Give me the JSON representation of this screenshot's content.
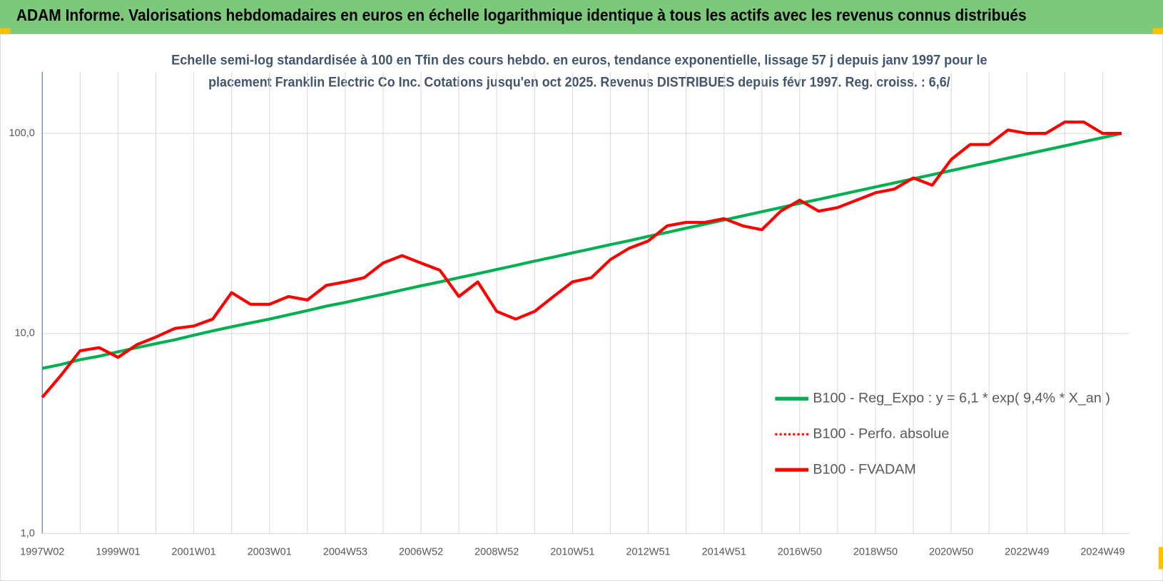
{
  "banner": "ADAM Informe. Valorisations hebdomadaires en euros en échelle logarithmique identique à tous les actifs avec les revenus connus distribués",
  "chart_data": {
    "type": "line",
    "subtitle": [
      "Echelle semi-log standardisée à 100 en Tfin des cours hebdo. en euros, tendance exponentielle, lissage 57 j depuis janv 1997 pour le",
      "placement Franklin Electric Co Inc.  Cotations jusqu'en oct 2025. Revenus DISTRIBUES depuis févr 1997. Reg. croiss. : 6,6/"
    ],
    "categories": [
      "1997W02",
      null,
      null,
      null,
      "1999W01",
      null,
      null,
      null,
      "2001W01",
      null,
      null,
      null,
      "2003W01",
      null,
      null,
      null,
      "2004W53",
      null,
      null,
      null,
      "2006W52",
      null,
      null,
      null,
      "2008W52",
      null,
      null,
      null,
      "2010W51",
      null,
      null,
      null,
      "2012W51",
      null,
      null,
      null,
      "2014W51",
      null,
      null,
      null,
      "2016W50",
      null,
      null,
      null,
      "2018W50",
      null,
      null,
      null,
      "2020W50",
      null,
      null,
      null,
      "2022W49",
      null,
      null,
      null,
      "2024W49",
      null
    ],
    "series": [
      {
        "name": "B100 - Reg_Expo : y = 6,1 * exp( 9,4% *  X_an )",
        "color": "#00b050",
        "dash": false,
        "values": [
          6.7,
          7.0,
          7.4,
          7.7,
          8.1,
          8.5,
          8.9,
          9.3,
          9.8,
          10.3,
          10.8,
          11.3,
          11.8,
          12.4,
          13.0,
          13.7,
          14.3,
          15.0,
          15.7,
          16.5,
          17.3,
          18.1,
          19.0,
          19.9,
          20.9,
          21.9,
          23.0,
          24.1,
          25.3,
          26.5,
          27.8,
          29.1,
          30.6,
          32.0,
          33.6,
          35.2,
          36.9,
          38.7,
          40.6,
          42.6,
          44.7,
          46.8,
          49.1,
          51.5,
          54.0,
          56.6,
          59.3,
          62.2,
          65.2,
          68.4,
          71.7,
          75.2,
          78.9,
          82.7,
          86.7,
          90.9,
          95.3,
          100.0
        ]
      },
      {
        "name": "B100 - Perfo. absolue",
        "color": "#ff0000",
        "dash": true,
        "values": [
          4.8,
          6.2,
          8.2,
          8.5,
          7.6,
          8.8,
          9.6,
          10.6,
          10.9,
          11.8,
          16.0,
          14.0,
          14.0,
          15.3,
          14.7,
          17.4,
          18.1,
          19.0,
          22.5,
          24.5,
          22.5,
          20.7,
          15.3,
          18.1,
          12.9,
          11.8,
          12.9,
          15.3,
          18.1,
          19.0,
          23.4,
          26.7,
          29.0,
          34.5,
          35.9,
          35.9,
          37.5,
          34.5,
          33.0,
          40.9,
          46.4,
          40.9,
          42.6,
          46.4,
          50.5,
          52.7,
          59.9,
          55.1,
          74.0,
          88.0,
          88.0,
          104,
          100,
          100,
          114,
          114,
          100,
          100
        ]
      },
      {
        "name": "B100 - FVADAM",
        "color": "#ff0000",
        "dash": false,
        "values": [
          4.8,
          6.2,
          8.2,
          8.5,
          7.6,
          8.8,
          9.6,
          10.6,
          10.9,
          11.8,
          16.0,
          14.0,
          14.0,
          15.3,
          14.7,
          17.4,
          18.1,
          19.0,
          22.5,
          24.5,
          22.5,
          20.7,
          15.3,
          18.1,
          12.9,
          11.8,
          12.9,
          15.3,
          18.1,
          19.0,
          23.4,
          26.7,
          29.0,
          34.5,
          35.9,
          35.9,
          37.5,
          34.5,
          33.0,
          40.9,
          46.4,
          40.9,
          42.6,
          46.4,
          50.5,
          52.7,
          59.9,
          55.1,
          74.0,
          88.0,
          88.0,
          104,
          100,
          100,
          114,
          114,
          100,
          100
        ]
      }
    ],
    "log_scale": true,
    "grid": true,
    "ylim": [
      1,
      203
    ],
    "yticks": [
      {
        "value": 1,
        "label": "1,0"
      },
      {
        "value": 10,
        "label": "10,0"
      },
      {
        "value": 100,
        "label": "100,0"
      }
    ]
  }
}
